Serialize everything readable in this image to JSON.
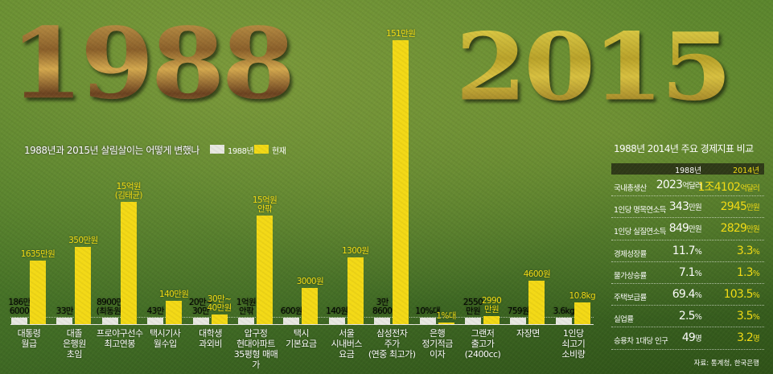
{
  "headline": {
    "left_year": "1988",
    "right_year": "2015"
  },
  "chart_data": {
    "type": "bar",
    "title": "1988년과 2015년 살림살이는 어떻게 변했나",
    "legend": {
      "position": "top-left",
      "items": [
        "1988년",
        "현재"
      ]
    },
    "colors": {
      "1988": "#e8e8e2",
      "current": "#f3d916"
    },
    "categories": [
      [
        "대통령",
        "월급"
      ],
      [
        "대졸",
        "은행원",
        "초임"
      ],
      [
        "프로야구선수",
        "최고연봉"
      ],
      [
        "택시기사",
        "월수입"
      ],
      [
        "대학생",
        "과외비"
      ],
      [
        "압구정",
        "현대아파트",
        "35평형 매매가"
      ],
      [
        "택시",
        "기본요금"
      ],
      [
        "서울",
        "시내버스",
        "요금"
      ],
      [
        "삼성전자",
        "주가",
        "(연중 최고가)"
      ],
      [
        "은행",
        "정기적금",
        "이자"
      ],
      [
        "그랜저",
        "출고가",
        "(2400cc)"
      ],
      [
        "자장면"
      ],
      [
        "1인당",
        "쇠고기",
        "소비량"
      ]
    ],
    "series": [
      {
        "name": "1988년",
        "labels": [
          [
            "186만",
            "6000"
          ],
          [
            "33만"
          ],
          [
            "8900만",
            "(최동원)"
          ],
          [
            "43만"
          ],
          [
            "20만~",
            "30만"
          ],
          [
            "1억원",
            "안팎"
          ],
          [
            "600원"
          ],
          [
            "140원"
          ],
          [
            "3만",
            "8600"
          ],
          [
            "10%대"
          ],
          [
            "2550",
            "만원"
          ],
          [
            "759원"
          ],
          [
            "3.6kg"
          ]
        ],
        "level": [
          0.023,
          0.023,
          0.023,
          0.023,
          0.023,
          0.023,
          0.023,
          0.023,
          0.023,
          0.023,
          0.023,
          0.023,
          0.023
        ]
      },
      {
        "name": "현재",
        "labels": [
          [
            "1635만원"
          ],
          [
            "350만원"
          ],
          [
            "15억원",
            "(김태균)"
          ],
          [
            "140만원"
          ],
          [
            "30만~",
            "40만원"
          ],
          [
            "15억원",
            "안팎"
          ],
          [
            "3000원"
          ],
          [
            "1300원"
          ],
          [
            "151만원"
          ],
          [
            "1%대"
          ],
          [
            "2990",
            "만원"
          ],
          [
            "4600원"
          ],
          [
            "10.8kg"
          ]
        ],
        "level": [
          0.224,
          0.272,
          0.431,
          0.082,
          0.034,
          0.382,
          0.127,
          0.235,
          1.0,
          0.005,
          0.028,
          0.153,
          0.076
        ]
      }
    ]
  },
  "table": {
    "title": "1988년 2014년 주요 경제지표 비교",
    "headers": [
      "1988년",
      "2014년"
    ],
    "rows": [
      {
        "label": "국내총생산",
        "v1": "2023",
        "u1": "억달러",
        "v2": "1조4102",
        "u2": "억달러"
      },
      {
        "label": "1인당 명목연소득",
        "v1": "343",
        "u1": "만원",
        "v2": "2945",
        "u2": "만원"
      },
      {
        "label": "1인당 실질연소득",
        "v1": "849",
        "u1": "만원",
        "v2": "2829",
        "u2": "만원"
      },
      {
        "label": "경제성장률",
        "v1": "11.7",
        "u1": "%",
        "v2": "3.3",
        "u2": "%"
      },
      {
        "label": "물가상승률",
        "v1": "7.1",
        "u1": "%",
        "v2": "1.3",
        "u2": "%"
      },
      {
        "label": "주택보급률",
        "v1": "69.4",
        "u1": "%",
        "v2": "103.5",
        "u2": "%"
      },
      {
        "label": "실업률",
        "v1": "2.5",
        "u1": "%",
        "v2": "3.5",
        "u2": "%"
      },
      {
        "label": "승용차 1대당 인구",
        "v1": "49",
        "u1": "명",
        "v2": "3.2",
        "u2": "명"
      }
    ],
    "source": "자료: 통계청, 한국은행"
  }
}
